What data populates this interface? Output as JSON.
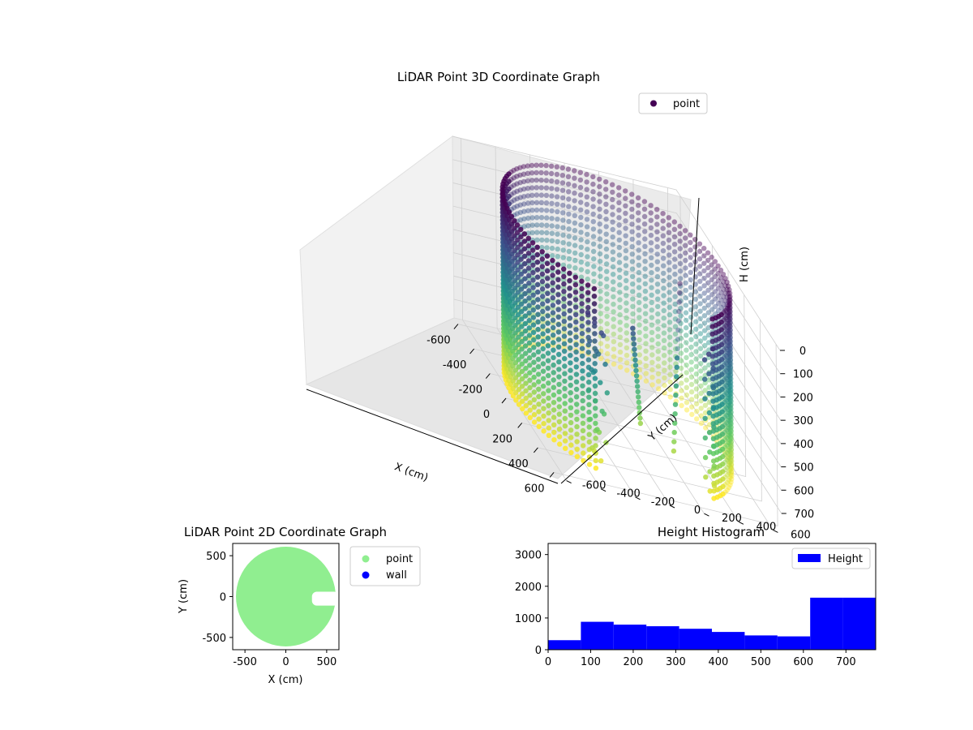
{
  "colors": {
    "viridis": [
      "#440154",
      "#3b528b",
      "#21918c",
      "#5ec962",
      "#fde725"
    ],
    "point2d": "#90ee90",
    "wall2d": "#0000ff",
    "histogram": "#0000ff"
  },
  "chart_data": [
    {
      "type": "scatter",
      "projection": "3d",
      "title": "LiDAR Point 3D Coordinate Graph",
      "xlabel": "X (cm)",
      "ylabel": "Y (cm)",
      "zlabel": "H (cm)",
      "xticks": [
        -600,
        -400,
        -200,
        0,
        200,
        400,
        600
      ],
      "yticks": [
        -600,
        -400,
        -200,
        0,
        200,
        400,
        600
      ],
      "zticks": [
        0,
        100,
        200,
        300,
        400,
        500,
        600,
        700
      ],
      "xlim": [
        -650,
        650
      ],
      "ylim": [
        -650,
        650
      ],
      "zlim": [
        780,
        0
      ],
      "zaxis_inverted": true,
      "color_by": "height",
      "colormap": "viridis",
      "legend": {
        "placement": "upper-right",
        "entries": [
          "point"
        ]
      },
      "grid": true,
      "shape": {
        "kind": "cylindrical-wall",
        "radius": 600,
        "height_range": [
          0,
          770
        ],
        "opening_angle_deg": [
          -35,
          30
        ],
        "inner_structure": "diagonal column of points near x≈150, y≈300"
      }
    },
    {
      "type": "scatter",
      "title": "LiDAR Point 2D Coordinate Graph",
      "xlabel": "X (cm)",
      "ylabel": "Y (cm)",
      "xticks": [
        -500,
        0,
        500
      ],
      "yticks": [
        -500,
        0,
        500
      ],
      "xlim": [
        -650,
        650
      ],
      "ylim": [
        -650,
        650
      ],
      "legend": {
        "placement": "outside-right",
        "entries": [
          "point",
          "wall"
        ]
      },
      "grid": false,
      "shape": {
        "kind": "filled-disk",
        "radius": 610,
        "notch": {
          "x_from": 320,
          "x_to": 650,
          "y_from": -110,
          "y_to": 60
        }
      }
    },
    {
      "type": "bar",
      "subtype": "histogram",
      "title": "Height Histogram",
      "legend": {
        "placement": "upper-right",
        "entries": [
          "Height"
        ]
      },
      "xlim": [
        0,
        770
      ],
      "ylim": [
        0,
        3350
      ],
      "xticks": [
        0,
        100,
        200,
        300,
        400,
        500,
        600,
        700
      ],
      "yticks": [
        0,
        1000,
        2000,
        3000
      ],
      "bin_edges": [
        0,
        77,
        154,
        231,
        308,
        385,
        462,
        539,
        616,
        693,
        770
      ],
      "counts": [
        300,
        880,
        790,
        740,
        660,
        560,
        450,
        420,
        1640,
        1640
      ],
      "grid": false
    }
  ]
}
